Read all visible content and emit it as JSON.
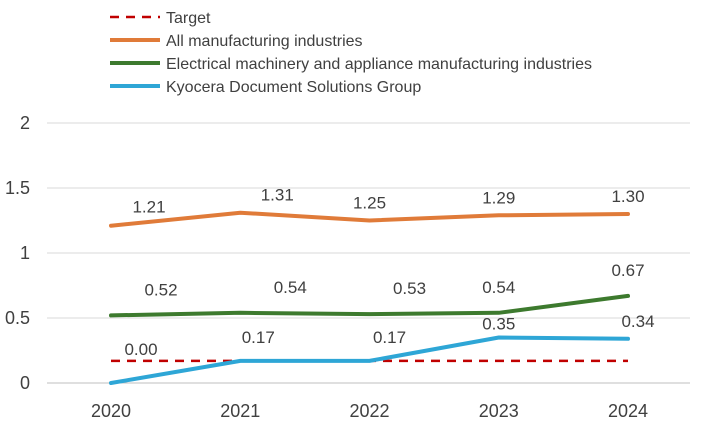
{
  "chart_data": {
    "type": "line",
    "categories": [
      "2020",
      "2021",
      "2022",
      "2023",
      "2024"
    ],
    "y_ticks": [
      "0",
      "0.5",
      "1",
      "1.5",
      "2"
    ],
    "ylim": [
      0,
      2
    ],
    "grid": true,
    "legend_position": "top-left",
    "series": [
      {
        "name": "Target",
        "style": "dashed",
        "color": "#c00000",
        "values": [
          0.17,
          0.17,
          0.17,
          0.17,
          0.17
        ],
        "labels": []
      },
      {
        "name": "All manufacturing industries",
        "style": "solid",
        "color": "#e07b39",
        "values": [
          1.21,
          1.31,
          1.25,
          1.29,
          1.3
        ],
        "labels": [
          "1.21",
          "1.31",
          "1.25",
          "1.29",
          "1.30"
        ]
      },
      {
        "name": "Electrical machinery and appliance manufacturing industries",
        "style": "solid",
        "color": "#3d7a2e",
        "values": [
          0.52,
          0.54,
          0.53,
          0.54,
          0.67
        ],
        "labels": [
          "0.52",
          "0.54",
          "0.53",
          "0.54",
          "0.67"
        ]
      },
      {
        "name": "Kyocera Document Solutions Group",
        "style": "solid",
        "color": "#2ea6d6",
        "values": [
          0.0,
          0.17,
          0.17,
          0.35,
          0.34
        ],
        "labels": [
          "0.00",
          "0.17",
          "0.17",
          "0.35",
          "0.34"
        ]
      }
    ]
  }
}
